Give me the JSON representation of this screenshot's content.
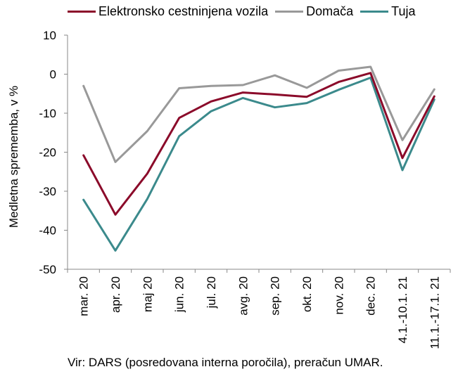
{
  "chart_data": {
    "type": "line",
    "title": "",
    "xlabel": "",
    "ylabel": "Medletna sprememba, v %",
    "ylim": [
      -50,
      10
    ],
    "yticks": [
      10,
      0,
      -10,
      -20,
      -30,
      -40,
      -50
    ],
    "grid": false,
    "legend_position": "top",
    "categories": [
      "mar. 20",
      "apr. 20",
      "maj 20",
      "jun. 20",
      "jul. 20",
      "avg. 20",
      "sep. 20",
      "okt. 20",
      "nov. 20",
      "dec. 20",
      "4.1.-10.1. 21",
      "11.1.-17.1. 21"
    ],
    "series": [
      {
        "name": "Elektronsko cestninjena vozila",
        "color": "#8b0a2a",
        "values": [
          -20.8,
          -36.0,
          -25.5,
          -11.2,
          -7.0,
          -4.7,
          -5.2,
          -5.8,
          -2.0,
          0.3,
          -21.5,
          -5.7
        ]
      },
      {
        "name": "Domača",
        "color": "#999999",
        "values": [
          -3.0,
          -22.5,
          -14.6,
          -3.6,
          -3.0,
          -2.8,
          -0.3,
          -3.5,
          0.9,
          1.9,
          -16.9,
          -3.9
        ]
      },
      {
        "name": "Tuja",
        "color": "#3b8a8c",
        "values": [
          -32.2,
          -45.2,
          -32.0,
          -15.9,
          -9.5,
          -6.1,
          -8.5,
          -7.4,
          -4.0,
          -0.9,
          -24.6,
          -6.5
        ]
      }
    ]
  },
  "source": "Vir: DARS (posredovana interna poročila), preračun UMAR."
}
